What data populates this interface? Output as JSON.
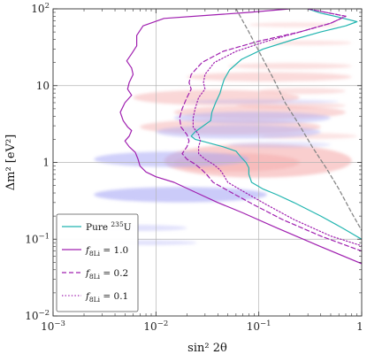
{
  "chart_data": {
    "type": "line",
    "xlabel": "sin² 2θ",
    "ylabel": "Δm² [eV²]",
    "x_scale": "log",
    "y_scale": "log",
    "xlim": [
      0.001,
      1
    ],
    "ylim": [
      0.01,
      100
    ],
    "x_ticks": [
      {
        "value": 0.001,
        "base": "10",
        "exp": "−3"
      },
      {
        "value": 0.01,
        "base": "10",
        "exp": "−2"
      },
      {
        "value": 0.1,
        "base": "10",
        "exp": "−1"
      },
      {
        "value": 1,
        "base": "1",
        "exp": ""
      }
    ],
    "y_ticks": [
      {
        "value": 0.01,
        "base": "10",
        "exp": "−2"
      },
      {
        "value": 0.1,
        "base": "10",
        "exp": "−1"
      },
      {
        "value": 1,
        "base": "1",
        "exp": ""
      },
      {
        "value": 10,
        "base": "10",
        "exp": ""
      },
      {
        "value": 100,
        "base": "10",
        "exp": "2"
      }
    ],
    "grid": true,
    "legend_position": "bottom-left",
    "series": [
      {
        "name": "Pure ²³⁵U",
        "legend": {
          "text": "Pure ",
          "sup": "235",
          "after": "U",
          "sub": ""
        },
        "color": "#22b5b0",
        "dash": "solid",
        "points": [
          [
            0.3,
            100
          ],
          [
            0.4,
            88
          ],
          [
            0.6,
            78
          ],
          [
            0.9,
            68
          ],
          [
            0.7,
            60
          ],
          [
            0.4,
            50
          ],
          [
            0.22,
            40
          ],
          [
            0.11,
            30
          ],
          [
            0.068,
            22
          ],
          [
            0.052,
            16
          ],
          [
            0.046,
            12
          ],
          [
            0.044,
            10
          ],
          [
            0.042,
            8
          ],
          [
            0.038,
            6
          ],
          [
            0.035,
            4.5
          ],
          [
            0.034,
            3.5
          ],
          [
            0.03,
            3.1
          ],
          [
            0.024,
            2.5
          ],
          [
            0.022,
            2.2
          ],
          [
            0.024,
            2
          ],
          [
            0.03,
            1.85
          ],
          [
            0.045,
            1.6
          ],
          [
            0.06,
            1.4
          ],
          [
            0.066,
            1.2
          ],
          [
            0.075,
            1
          ],
          [
            0.08,
            0.85
          ],
          [
            0.08,
            0.7
          ],
          [
            0.085,
            0.55
          ],
          [
            0.11,
            0.45
          ],
          [
            0.15,
            0.38
          ],
          [
            0.22,
            0.3
          ],
          [
            0.4,
            0.2
          ],
          [
            0.65,
            0.14
          ],
          [
            1.0,
            0.1
          ]
        ]
      },
      {
        "name": "f₈Li = 1.0",
        "legend": {
          "text": "f",
          "sup": "",
          "after": " = 1.0",
          "sub": "8Li"
        },
        "color": "#a020b0",
        "dash": "solid",
        "points": [
          [
            0.2,
            100
          ],
          [
            0.08,
            90
          ],
          [
            0.03,
            82
          ],
          [
            0.012,
            75
          ],
          [
            0.0075,
            60
          ],
          [
            0.0065,
            45
          ],
          [
            0.0065,
            33
          ],
          [
            0.0058,
            26
          ],
          [
            0.0052,
            21
          ],
          [
            0.0058,
            17
          ],
          [
            0.006,
            14
          ],
          [
            0.0055,
            11
          ],
          [
            0.0053,
            9
          ],
          [
            0.0058,
            7.5
          ],
          [
            0.005,
            6
          ],
          [
            0.0045,
            4.5
          ],
          [
            0.0048,
            3.5
          ],
          [
            0.0053,
            2.9
          ],
          [
            0.0058,
            2.6
          ],
          [
            0.0055,
            2.2
          ],
          [
            0.005,
            1.9
          ],
          [
            0.0055,
            1.6
          ],
          [
            0.0063,
            1.35
          ],
          [
            0.0067,
            1.1
          ],
          [
            0.007,
            0.9
          ],
          [
            0.008,
            0.75
          ],
          [
            0.01,
            0.65
          ],
          [
            0.015,
            0.55
          ],
          [
            0.025,
            0.4
          ],
          [
            0.04,
            0.3
          ],
          [
            0.07,
            0.22
          ],
          [
            0.15,
            0.14
          ],
          [
            0.4,
            0.08
          ],
          [
            1.0,
            0.048
          ]
        ]
      },
      {
        "name": "f₈Li = 0.2",
        "legend": {
          "text": "f",
          "sup": "",
          "after": " = 0.2",
          "sub": "8Li"
        },
        "color": "#a020b0",
        "dash": "dashed",
        "points": [
          [
            0.3,
            100
          ],
          [
            0.7,
            80
          ],
          [
            0.5,
            65
          ],
          [
            0.25,
            50
          ],
          [
            0.1,
            38
          ],
          [
            0.045,
            28
          ],
          [
            0.028,
            20
          ],
          [
            0.022,
            14
          ],
          [
            0.021,
            11
          ],
          [
            0.022,
            9
          ],
          [
            0.02,
            7
          ],
          [
            0.018,
            5
          ],
          [
            0.017,
            3.8
          ],
          [
            0.0175,
            2.9
          ],
          [
            0.02,
            2.3
          ],
          [
            0.021,
            1.9
          ],
          [
            0.02,
            1.6
          ],
          [
            0.018,
            1.3
          ],
          [
            0.02,
            1.1
          ],
          [
            0.024,
            0.95
          ],
          [
            0.028,
            0.8
          ],
          [
            0.031,
            0.7
          ],
          [
            0.036,
            0.55
          ],
          [
            0.055,
            0.4
          ],
          [
            0.09,
            0.28
          ],
          [
            0.17,
            0.18
          ],
          [
            0.4,
            0.11
          ],
          [
            1.0,
            0.07
          ]
        ]
      },
      {
        "name": "f₈Li = 0.1",
        "legend": {
          "text": "f",
          "sup": "",
          "after": " = 0.1",
          "sub": "8Li"
        },
        "color": "#a020b0",
        "dash": "dotted",
        "points": [
          [
            0.3,
            100
          ],
          [
            0.7,
            80
          ],
          [
            0.5,
            65
          ],
          [
            0.25,
            50
          ],
          [
            0.12,
            38
          ],
          [
            0.06,
            28
          ],
          [
            0.037,
            20
          ],
          [
            0.03,
            14
          ],
          [
            0.029,
            11
          ],
          [
            0.03,
            9
          ],
          [
            0.026,
            7
          ],
          [
            0.024,
            5
          ],
          [
            0.023,
            3.8
          ],
          [
            0.023,
            2.9
          ],
          [
            0.026,
            2.3
          ],
          [
            0.027,
            1.9
          ],
          [
            0.026,
            1.6
          ],
          [
            0.026,
            1.3
          ],
          [
            0.03,
            1.1
          ],
          [
            0.036,
            0.95
          ],
          [
            0.042,
            0.8
          ],
          [
            0.045,
            0.7
          ],
          [
            0.05,
            0.55
          ],
          [
            0.075,
            0.4
          ],
          [
            0.12,
            0.28
          ],
          [
            0.22,
            0.18
          ],
          [
            0.5,
            0.11
          ],
          [
            1.0,
            0.082
          ]
        ]
      },
      {
        "name": "",
        "color": "#888888",
        "dash": "grey-dashed",
        "points": [
          [
            0.06,
            100
          ],
          [
            0.08,
            50
          ],
          [
            0.11,
            22
          ],
          [
            0.14,
            12
          ],
          [
            0.18,
            6
          ],
          [
            0.25,
            3
          ],
          [
            0.33,
            1.6
          ],
          [
            0.45,
            0.85
          ],
          [
            0.6,
            0.45
          ],
          [
            0.8,
            0.22
          ],
          [
            1.0,
            0.13
          ]
        ]
      }
    ],
    "regions": [
      {
        "color": "#f4a6a6",
        "opacity": 0.55,
        "x": [
          0.012,
          0.8
        ],
        "y": 1.05,
        "h": 0.11
      },
      {
        "color": "#f4a6a6",
        "opacity": 0.45,
        "x": [
          0.015,
          0.25
        ],
        "y": 1.0,
        "h": 0.06
      },
      {
        "color": "#f4a6a6",
        "opacity": 0.45,
        "x": [
          0.007,
          0.4
        ],
        "y": 2.9,
        "h": 0.05
      },
      {
        "color": "#f4a6a6",
        "opacity": 0.45,
        "x": [
          0.015,
          0.7
        ],
        "y": 4.5,
        "h": 0.045
      },
      {
        "color": "#f4a6a6",
        "opacity": 0.45,
        "x": [
          0.006,
          0.25
        ],
        "y": 7.0,
        "h": 0.05
      },
      {
        "color": "#f4a6a6",
        "opacity": 0.4,
        "x": [
          0.02,
          0.8
        ],
        "y": 13,
        "h": 0.03
      },
      {
        "color": "#f4a6a6",
        "opacity": 0.35,
        "x": [
          0.05,
          0.8
        ],
        "y": 18,
        "h": 0.02
      },
      {
        "color": "#f4a6a6",
        "opacity": 0.35,
        "x": [
          0.06,
          0.7
        ],
        "y": 5.5,
        "h": 0.02
      },
      {
        "color": "#f4a6a6",
        "opacity": 0.35,
        "x": [
          0.1,
          0.7
        ],
        "y": 8.5,
        "h": 0.02
      },
      {
        "color": "#f4a6a6",
        "opacity": 0.3,
        "x": [
          0.1,
          0.9
        ],
        "y": 2.2,
        "h": 0.02
      },
      {
        "color": "#f4a6a6",
        "opacity": 0.3,
        "x": [
          0.08,
          0.6
        ],
        "y": 62,
        "h": 0.015
      },
      {
        "color": "#f4a6a6",
        "opacity": 0.3,
        "x": [
          0.12,
          0.8
        ],
        "y": 36,
        "h": 0.015
      },
      {
        "color": "#a9a9f5",
        "opacity": 0.55,
        "x": [
          0.0025,
          0.08
        ],
        "y": 1.1,
        "h": 0.05
      },
      {
        "color": "#a9a9f5",
        "opacity": 0.6,
        "x": [
          0.0025,
          0.12
        ],
        "y": 0.38,
        "h": 0.05
      },
      {
        "color": "#a9a9f5",
        "opacity": 0.45,
        "x": [
          0.01,
          0.4
        ],
        "y": 2.5,
        "h": 0.045
      },
      {
        "color": "#a9a9f5",
        "opacity": 0.45,
        "x": [
          0.015,
          0.5
        ],
        "y": 3.8,
        "h": 0.04
      },
      {
        "color": "#a9a9f5",
        "opacity": 0.35,
        "x": [
          0.002,
          0.02
        ],
        "y": 0.14,
        "h": 0.02
      },
      {
        "color": "#a9a9f5",
        "opacity": 0.35,
        "x": [
          0.003,
          0.025
        ],
        "y": 0.09,
        "h": 0.015
      },
      {
        "color": "#a9a9f5",
        "opacity": 0.3,
        "x": [
          0.05,
          0.5
        ],
        "y": 1.7,
        "h": 0.02
      },
      {
        "color": "#a9a9f5",
        "opacity": 0.3,
        "x": [
          0.02,
          0.6
        ],
        "y": 6.2,
        "h": 0.015
      }
    ]
  }
}
